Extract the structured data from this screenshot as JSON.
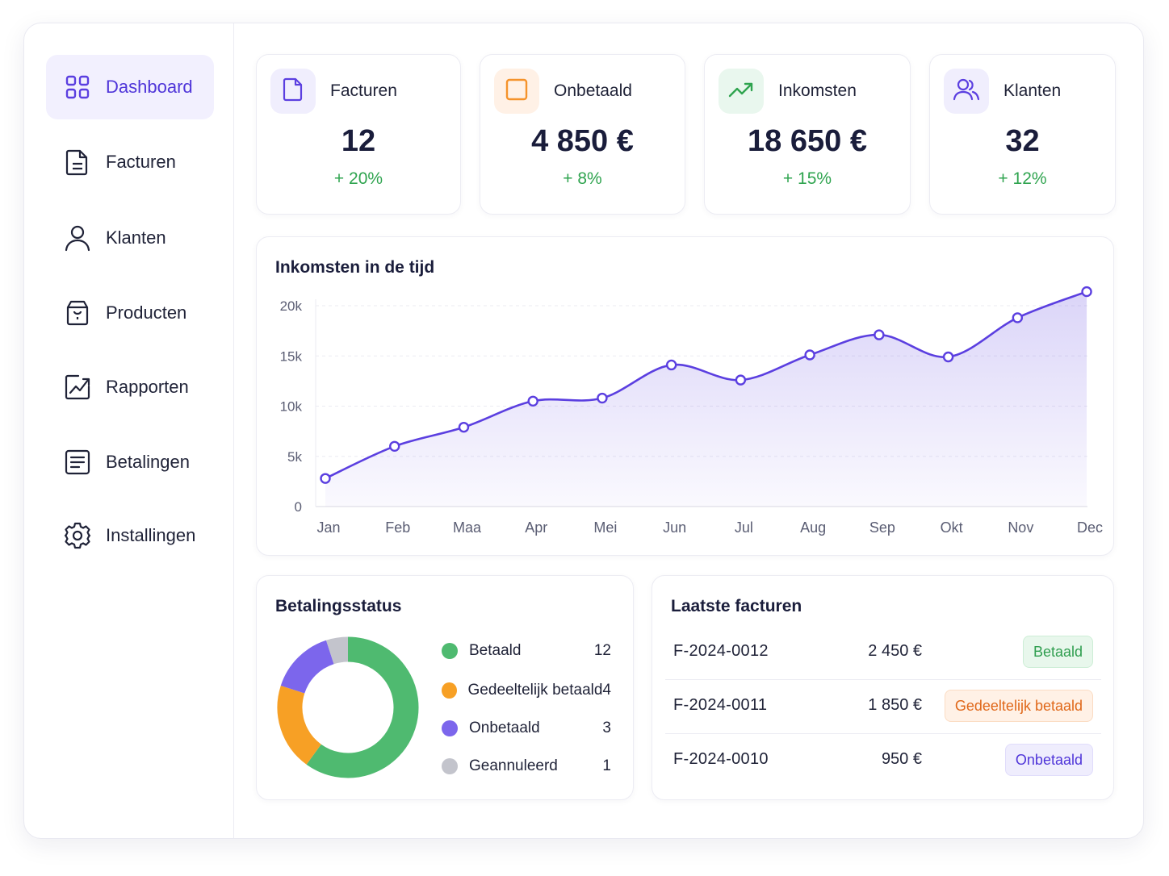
{
  "sidebar": {
    "items": [
      {
        "label": "Dashboard",
        "icon": "grid-icon",
        "active": true
      },
      {
        "label": "Facturen",
        "icon": "document-icon"
      },
      {
        "label": "Klanten",
        "icon": "user-icon"
      },
      {
        "label": "Producten",
        "icon": "box-icon"
      },
      {
        "label": "Rapporten",
        "icon": "chart-up-icon"
      },
      {
        "label": "Betalingen",
        "icon": "receipt-icon"
      },
      {
        "label": "Installingen",
        "icon": "gear-icon"
      }
    ]
  },
  "stats": [
    {
      "title": "Facturen",
      "value": "12",
      "change": "+ 20%",
      "icon": "document-icon",
      "icon_bg": "#f0eefd",
      "icon_color": "#5b3fe0"
    },
    {
      "title": "Onbetaald",
      "value": "4 850 €",
      "change": "+ 8%",
      "icon": "square-icon",
      "icon_bg": "#fff1e6",
      "icon_color": "#f5932b"
    },
    {
      "title": "Inkomsten",
      "value": "18 650 €",
      "change": "+ 15%",
      "icon": "trend-up-icon",
      "icon_bg": "#e9f7ee",
      "icon_color": "#2fa44f"
    },
    {
      "title": "Klanten",
      "value": "32",
      "change": "+ 12%",
      "icon": "users-icon",
      "icon_bg": "#f0eefd",
      "icon_color": "#5b3fe0"
    }
  ],
  "income_chart": {
    "title": "Inkomsten in de tijd"
  },
  "payment_status": {
    "title": "Betalingsstatus"
  },
  "latest_invoices": {
    "title": "Laatste facturen",
    "rows": [
      {
        "number": "F-2024-0012",
        "amount": "2 450 €",
        "status": "Betaald",
        "badge_bg": "#e8f7ec",
        "badge_fg": "#2f9e4f",
        "badge_border": "#cdeed6"
      },
      {
        "number": "F-2024-0011",
        "amount": "1 850 €",
        "status": "Gedeeltelijk betaald",
        "badge_bg": "#fff1e6",
        "badge_fg": "#e0681a",
        "badge_border": "#fbdcc3"
      },
      {
        "number": "F-2024-0010",
        "amount": "950 €",
        "status": "Onbetaald",
        "badge_bg": "#efedfd",
        "badge_fg": "#4f35d9",
        "badge_border": "#e0dcfb"
      }
    ]
  },
  "colors": {
    "accent": "#5b3fe0",
    "positive": "#2fa44f"
  },
  "chart_data": [
    {
      "type": "area",
      "title": "Inkomsten in de tijd",
      "categories": [
        "Jan",
        "Feb",
        "Maa",
        "Apr",
        "Mei",
        "Jun",
        "Jul",
        "Aug",
        "Sep",
        "Okt",
        "Nov",
        "Dec"
      ],
      "values": [
        2800,
        6000,
        7900,
        10500,
        10800,
        14100,
        12600,
        15100,
        17100,
        14900,
        18800,
        21400
      ],
      "ylim": [
        0,
        20000
      ],
      "yticks": [
        "0",
        "5k",
        "10k",
        "15k",
        "20k"
      ],
      "grid": true,
      "color": "#5b3fe0"
    },
    {
      "type": "pie",
      "title": "Betalingsstatus",
      "donut": true,
      "categories": [
        "Betaald",
        "Gedeeltelijk betaald",
        "Onbetaald",
        "Geannuleerd"
      ],
      "values": [
        12,
        4,
        3,
        1
      ],
      "colors": [
        "#4fba70",
        "#f7a025",
        "#7c66ec",
        "#c3c4cc"
      ],
      "legend": "right"
    }
  ]
}
